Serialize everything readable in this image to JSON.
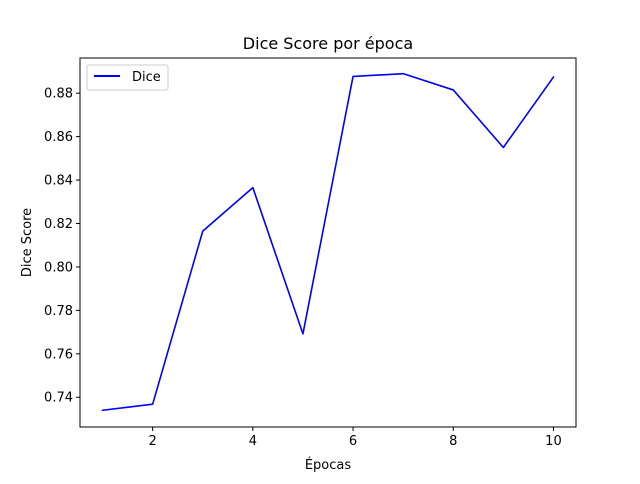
{
  "chart_data": {
    "type": "line",
    "title": "Dice Score por época",
    "xlabel": "Épocas",
    "ylabel": "Dice Score",
    "xlim": [
      0.55,
      10.45
    ],
    "ylim": [
      0.7263,
      0.8962
    ],
    "xticks": [
      2,
      4,
      6,
      8,
      10
    ],
    "xtick_labels": [
      "2",
      "4",
      "6",
      "8",
      "10"
    ],
    "yticks": [
      0.74,
      0.76,
      0.78,
      0.8,
      0.82,
      0.84,
      0.86,
      0.88
    ],
    "ytick_labels": [
      "0.74",
      "0.76",
      "0.78",
      "0.80",
      "0.82",
      "0.84",
      "0.86",
      "0.88"
    ],
    "grid": false,
    "legend": "top-left",
    "x": [
      1,
      2,
      3,
      4,
      5,
      6,
      7,
      8,
      9,
      10
    ],
    "series": [
      {
        "name": "Dice",
        "color": "#0000ff",
        "values": [
          0.734,
          0.7368,
          0.8165,
          0.8365,
          0.7692,
          0.8877,
          0.889,
          0.8815,
          0.855,
          0.8874
        ]
      }
    ]
  }
}
